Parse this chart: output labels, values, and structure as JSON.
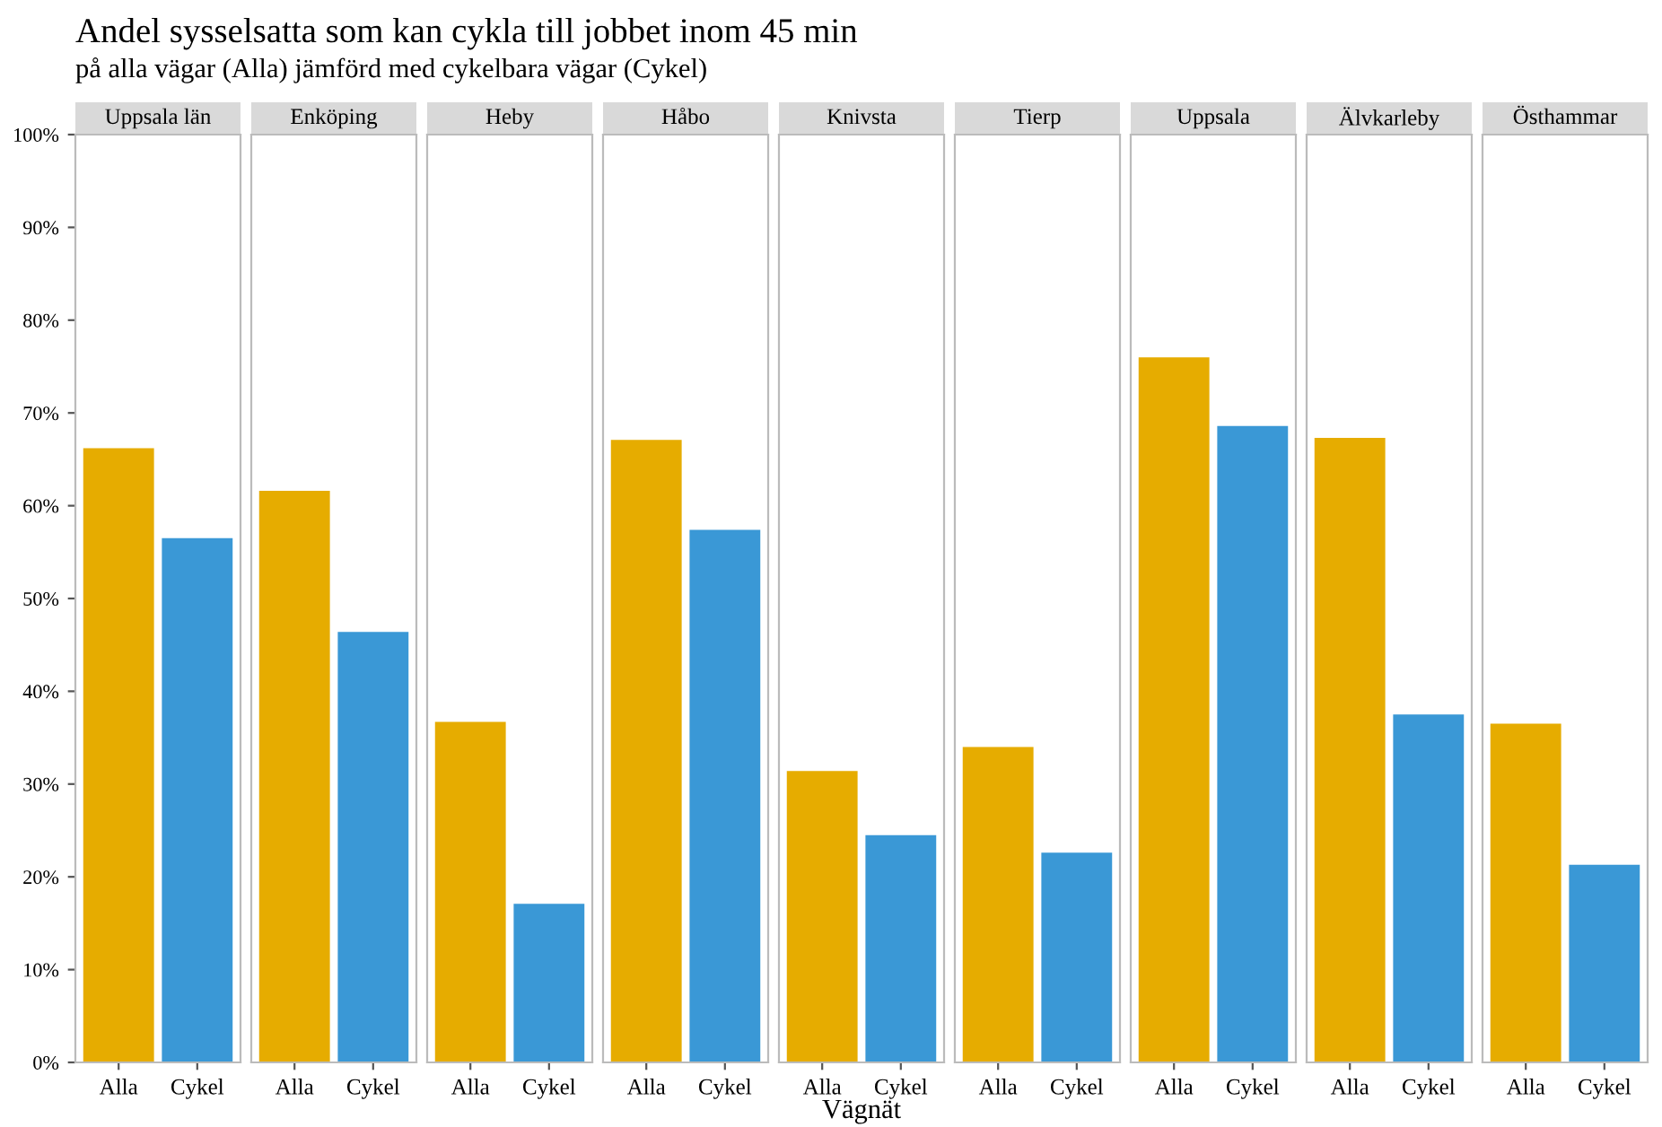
{
  "chart_data": [
    {
      "type": "bar",
      "title": "Uppsala län",
      "annotations": [
        "Andel sysselsatta som kan cykla till jobbet inom 45 min",
        "på alla vägar (Alla) jämförd med cykelbara vägar (Cykel)"
      ],
      "categories": [
        "Alla",
        "Cykel"
      ],
      "values": [
        66.2,
        56.5
      ],
      "colors": [
        "#e6ac00",
        "#3a98d6"
      ],
      "ylim": [
        0,
        100
      ],
      "yticks": [
        {
          "value": 0,
          "label": "0%"
        },
        {
          "value": 10,
          "label": "10%"
        },
        {
          "value": 20,
          "label": "20%"
        },
        {
          "value": 30,
          "label": "30%"
        },
        {
          "value": 40,
          "label": "40%"
        },
        {
          "value": 50,
          "label": "50%"
        },
        {
          "value": 60,
          "label": "60%"
        },
        {
          "value": 70,
          "label": "70%"
        },
        {
          "value": 80,
          "label": "80%"
        },
        {
          "value": 90,
          "label": "90%"
        },
        {
          "value": 100,
          "label": "100%"
        }
      ]
    },
    {
      "type": "bar",
      "title": "Enköping",
      "categories": [
        "Alla",
        "Cykel"
      ],
      "values": [
        61.6,
        46.4
      ],
      "colors": [
        "#e6ac00",
        "#3a98d6"
      ],
      "ylim": [
        0,
        100
      ],
      "tick_labels": "x"
    },
    {
      "type": "bar",
      "title": "Heby",
      "categories": [
        "Alla",
        "Cykel"
      ],
      "values": [
        36.7,
        17.1
      ],
      "colors": [
        "#e6ac00",
        "#3a98d6"
      ],
      "ylim": [
        0,
        100
      ],
      "tick_labels": "x"
    },
    {
      "type": "bar",
      "title": "Håbo",
      "categories": [
        "Alla",
        "Cykel"
      ],
      "values": [
        67.1,
        57.4
      ],
      "colors": [
        "#e6ac00",
        "#3a98d6"
      ],
      "ylim": [
        0,
        100
      ],
      "tick_labels": "x"
    },
    {
      "type": "bar",
      "title": "Knivsta",
      "xlabel": "Vägnät",
      "categories": [
        "Alla",
        "Cykel"
      ],
      "values": [
        31.4,
        24.5
      ],
      "colors": [
        "#e6ac00",
        "#3a98d6"
      ],
      "ylim": [
        0,
        100
      ],
      "tick_labels": "x"
    },
    {
      "type": "bar",
      "title": "Tierp",
      "categories": [
        "Alla",
        "Cykel"
      ],
      "values": [
        34.0,
        22.6
      ],
      "colors": [
        "#e6ac00",
        "#3a98d6"
      ],
      "ylim": [
        0,
        100
      ],
      "tick_labels": "x"
    },
    {
      "type": "bar",
      "title": "Uppsala",
      "categories": [
        "Alla",
        "Cykel"
      ],
      "values": [
        76.0,
        68.6
      ],
      "colors": [
        "#e6ac00",
        "#3a98d6"
      ],
      "ylim": [
        0,
        100
      ],
      "tick_labels": "x"
    },
    {
      "type": "bar",
      "title": "Älvkarleby",
      "categories": [
        "Alla",
        "Cykel"
      ],
      "values": [
        67.3,
        37.5
      ],
      "colors": [
        "#e6ac00",
        "#3a98d6"
      ],
      "ylim": [
        0,
        100
      ],
      "tick_labels": "x"
    },
    {
      "type": "bar",
      "title": "Östhammar",
      "categories": [
        "Alla",
        "Cykel"
      ],
      "values": [
        36.5,
        21.3
      ],
      "colors": [
        "#e6ac00",
        "#3a98d6"
      ],
      "ylim": [
        0,
        100
      ],
      "tick_labels": "x"
    }
  ]
}
